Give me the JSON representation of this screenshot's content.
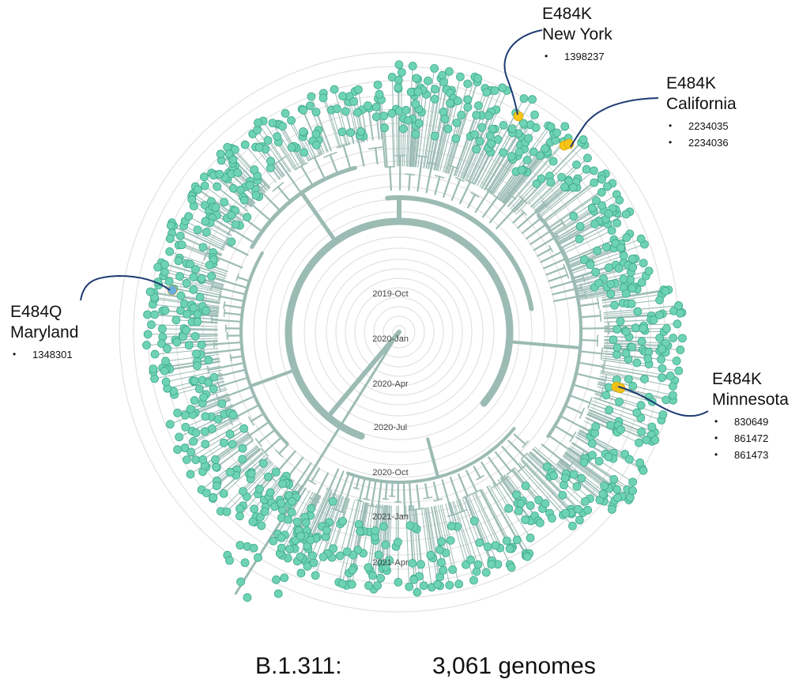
{
  "tree": {
    "time_rings": [
      "2019-Oct",
      "2020-Jan",
      "2020-Apr",
      "2020-Jul",
      "2020-Oct",
      "2021-Jan",
      "2021-Apr"
    ],
    "colors": {
      "branch": "#9bbbb3",
      "tip": "#6ed3b4",
      "tip_stroke": "#3fa989",
      "ring": "#e2e2e2",
      "e484k": "#f5c518",
      "e484q": "#6aaee0",
      "callout_line": "#1f3b73"
    }
  },
  "callouts": [
    {
      "mutation": "E484K",
      "location": "New York",
      "ids": [
        "1398237"
      ]
    },
    {
      "mutation": "E484K",
      "location": "California",
      "ids": [
        "2234035",
        "2234036"
      ]
    },
    {
      "mutation": "E484Q",
      "location": "Maryland",
      "ids": [
        "1348301"
      ]
    },
    {
      "mutation": "E484K",
      "location": "Minnesota",
      "ids": [
        "830649",
        "861472",
        "861473"
      ]
    }
  ],
  "footer": {
    "lineage": "B.1.311:",
    "genomes": "3,061 genomes"
  }
}
